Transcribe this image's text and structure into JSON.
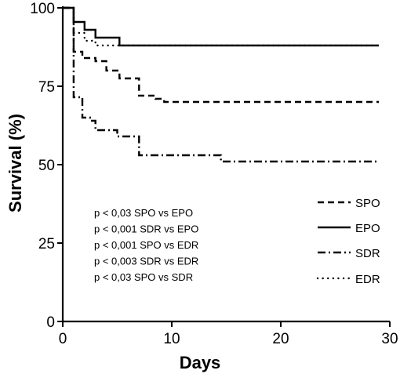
{
  "chart_data": {
    "type": "line",
    "title": "",
    "xlabel": "Days",
    "ylabel": "Survival (%)",
    "xlim": [
      0,
      30
    ],
    "ylim": [
      0,
      100
    ],
    "xticks": [
      "0",
      "10",
      "20",
      "30"
    ],
    "yticks": [
      "0",
      "25",
      "50",
      "75",
      "100"
    ],
    "legend_position": "right",
    "grid": false,
    "series": [
      {
        "name": "SPO",
        "dash": "dashed",
        "points": [
          [
            0,
            100
          ],
          [
            1,
            100
          ],
          [
            1,
            86
          ],
          [
            1.8,
            86
          ],
          [
            1.8,
            84
          ],
          [
            3,
            84
          ],
          [
            3,
            83
          ],
          [
            4,
            83
          ],
          [
            4,
            80
          ],
          [
            5.2,
            80
          ],
          [
            5.2,
            77.5
          ],
          [
            7,
            77.5
          ],
          [
            7,
            72
          ],
          [
            8.5,
            72
          ],
          [
            8.5,
            71
          ],
          [
            9.3,
            71
          ],
          [
            9.3,
            70
          ],
          [
            29,
            70
          ]
        ]
      },
      {
        "name": "EPO",
        "dash": "solid",
        "points": [
          [
            0,
            100
          ],
          [
            1,
            100
          ],
          [
            1,
            95.5
          ],
          [
            2,
            95.5
          ],
          [
            2,
            93
          ],
          [
            3,
            93
          ],
          [
            3,
            90.5
          ],
          [
            5.2,
            90.5
          ],
          [
            5.2,
            88
          ],
          [
            29,
            88
          ]
        ]
      },
      {
        "name": "SDR",
        "dash": "dashdot",
        "points": [
          [
            0,
            100
          ],
          [
            1,
            100
          ],
          [
            1,
            71.5
          ],
          [
            1.8,
            71.5
          ],
          [
            1.8,
            65
          ],
          [
            2.5,
            65
          ],
          [
            2.5,
            64
          ],
          [
            3,
            64
          ],
          [
            3,
            61
          ],
          [
            5,
            61
          ],
          [
            5,
            59
          ],
          [
            7,
            59
          ],
          [
            7,
            53
          ],
          [
            14.5,
            53
          ],
          [
            14.5,
            51
          ],
          [
            29,
            51
          ]
        ]
      },
      {
        "name": "EDR",
        "dash": "dotted",
        "points": [
          [
            0,
            100
          ],
          [
            1,
            100
          ],
          [
            1,
            92
          ],
          [
            2,
            92
          ],
          [
            2,
            89.5
          ],
          [
            3,
            89.5
          ],
          [
            3,
            88
          ],
          [
            29,
            88
          ]
        ]
      }
    ],
    "annotations": [
      "p < 0,03 SPO vs EPO",
      "p < 0,001 SDR vs EPO",
      "p < 0,001 SPO vs EDR",
      "p < 0,003 SDR vs EDR",
      "p < 0,03 SPO vs SDR"
    ]
  }
}
